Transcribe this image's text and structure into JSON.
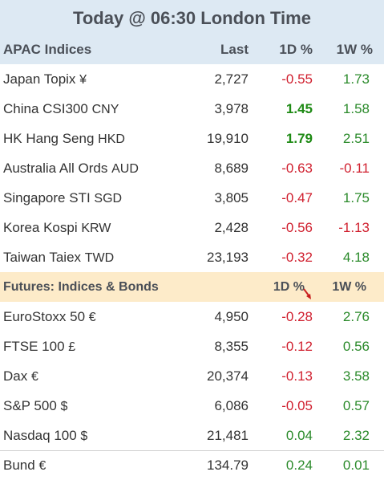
{
  "title": "Today @ 06:30 London Time",
  "apac_header": {
    "name": "APAC Indices",
    "last": "Last",
    "d1": "1D %",
    "w1": "1W %"
  },
  "apac": [
    {
      "name": "Japan Topix",
      "cur": "¥",
      "last": "2,727",
      "d1": "-0.55",
      "w1": "1.73",
      "d1c": "neg",
      "w1c": "pos"
    },
    {
      "name": "China CSI300",
      "cur": "CNY",
      "last": "3,978",
      "d1": "1.45",
      "w1": "1.58",
      "d1c": "strong",
      "w1c": "pos"
    },
    {
      "name": "HK Hang Seng",
      "cur": "HKD",
      "last": "19,910",
      "d1": "1.79",
      "w1": "2.51",
      "d1c": "strong",
      "w1c": "pos"
    },
    {
      "name": "Australia All Ords",
      "cur": "AUD",
      "last": "8,689",
      "d1": "-0.63",
      "w1": "-0.11",
      "d1c": "neg",
      "w1c": "neg"
    },
    {
      "name": "Singapore STI",
      "cur": "SGD",
      "last": "3,805",
      "d1": "-0.47",
      "w1": "1.75",
      "d1c": "neg",
      "w1c": "pos"
    },
    {
      "name": "Korea Kospi",
      "cur": "KRW",
      "last": "2,428",
      "d1": "-0.56",
      "w1": "-1.13",
      "d1c": "neg",
      "w1c": "neg"
    },
    {
      "name": "Taiwan Taiex",
      "cur": "TWD",
      "last": "23,193",
      "d1": "-0.32",
      "w1": "4.18",
      "d1c": "neg",
      "w1c": "pos"
    }
  ],
  "futures_header": {
    "name": "Futures: Indices & Bonds",
    "d1": "1D %",
    "w1": "1W %",
    "arrow_icon": "red-down-arrow-icon"
  },
  "futures": [
    {
      "name": "EuroStoxx 50",
      "cur": "€",
      "last": "4,950",
      "d1": "-0.28",
      "w1": "2.76",
      "d1c": "neg",
      "w1c": "pos"
    },
    {
      "name": "FTSE 100",
      "cur": "£",
      "last": "8,355",
      "d1": "-0.12",
      "w1": "0.56",
      "d1c": "neg",
      "w1c": "pos"
    },
    {
      "name": "Dax",
      "cur": "€",
      "last": "20,374",
      "d1": "-0.13",
      "w1": "3.58",
      "d1c": "neg",
      "w1c": "pos"
    },
    {
      "name": "S&P 500",
      "cur": "$",
      "last": "6,086",
      "d1": "-0.05",
      "w1": "0.57",
      "d1c": "neg",
      "w1c": "pos"
    },
    {
      "name": "Nasdaq 100",
      "cur": "$",
      "last": "21,481",
      "d1": "0.04",
      "w1": "2.32",
      "d1c": "pos",
      "w1c": "pos"
    },
    {
      "name": "Bund",
      "cur": "€",
      "last": "134.79",
      "d1": "0.24",
      "w1": "0.01",
      "d1c": "pos",
      "w1c": "pos"
    }
  ],
  "colors": {
    "header_bg": "#dde9f3",
    "futures_bg": "#fdebc9",
    "negative": "#d01f2e",
    "positive": "#2a8a2a"
  }
}
